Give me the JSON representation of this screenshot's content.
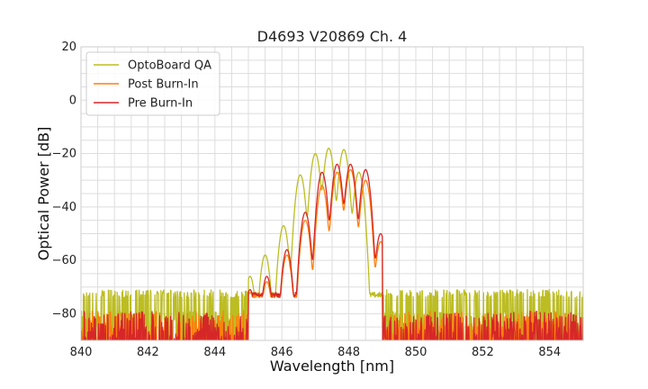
{
  "chart_data": {
    "type": "line",
    "title": "D4693 V20869 Ch. 4",
    "xlabel": "Wavelength [nm]",
    "ylabel": "Optical Power [dB]",
    "xlim": [
      840,
      855
    ],
    "ylim": [
      -90,
      20
    ],
    "xticks": [
      840,
      842,
      844,
      846,
      848,
      850,
      852,
      854
    ],
    "yticks": [
      20,
      0,
      -20,
      -40,
      -60,
      -80
    ],
    "grid": true,
    "legend_position": "top-left",
    "noise_floor": {
      "left_edge_nm": 845.0,
      "right_edge_nm": 849.0,
      "level_db": [
        -85,
        -72
      ]
    },
    "series": [
      {
        "name": "OptoBoard QA",
        "color": "#bcbd22",
        "peaks": [
          {
            "x": 845.05,
            "y": -66
          },
          {
            "x": 845.5,
            "y": -58
          },
          {
            "x": 846.05,
            "y": -47
          },
          {
            "x": 846.55,
            "y": -28
          },
          {
            "x": 847.0,
            "y": -20
          },
          {
            "x": 847.4,
            "y": -18
          },
          {
            "x": 847.85,
            "y": -18.5
          },
          {
            "x": 848.3,
            "y": -27
          }
        ]
      },
      {
        "name": "Post Burn-In",
        "color": "#ff7f0e",
        "peaks": [
          {
            "x": 845.05,
            "y": -72
          },
          {
            "x": 845.55,
            "y": -68
          },
          {
            "x": 846.15,
            "y": -58
          },
          {
            "x": 846.7,
            "y": -45
          },
          {
            "x": 847.2,
            "y": -32
          },
          {
            "x": 847.65,
            "y": -27
          },
          {
            "x": 848.05,
            "y": -26
          },
          {
            "x": 848.5,
            "y": -30
          },
          {
            "x": 848.95,
            "y": -53
          }
        ]
      },
      {
        "name": "Pre Burn-In",
        "color": "#d62728",
        "peaks": [
          {
            "x": 845.05,
            "y": -71
          },
          {
            "x": 845.55,
            "y": -66
          },
          {
            "x": 846.15,
            "y": -56
          },
          {
            "x": 846.7,
            "y": -42
          },
          {
            "x": 847.2,
            "y": -27
          },
          {
            "x": 847.65,
            "y": -24
          },
          {
            "x": 848.05,
            "y": -24
          },
          {
            "x": 848.5,
            "y": -26
          },
          {
            "x": 848.95,
            "y": -50
          }
        ]
      }
    ]
  }
}
